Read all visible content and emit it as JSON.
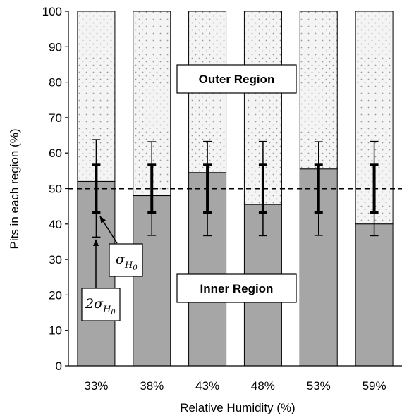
{
  "chart_data": {
    "type": "bar",
    "stacked": true,
    "categories": [
      "33%",
      "38%",
      "43%",
      "48%",
      "53%",
      "59%"
    ],
    "series": [
      {
        "name": "Inner Region",
        "values": [
          52,
          48,
          54.5,
          45.5,
          55.5,
          40
        ]
      },
      {
        "name": "Outer Region",
        "values": [
          48,
          52,
          45.5,
          54.5,
          44.5,
          60
        ]
      }
    ],
    "error_bars": {
      "center": 50,
      "sigma": {
        "low": 43.2,
        "high": 56.8
      },
      "two_sigma": [
        {
          "low": 36.3,
          "high": 63.8
        },
        {
          "low": 36.8,
          "high": 63.2
        },
        {
          "low": 36.7,
          "high": 63.3
        },
        {
          "low": 36.7,
          "high": 63.3
        },
        {
          "low": 36.8,
          "high": 63.2
        },
        {
          "low": 36.7,
          "high": 63.3
        }
      ]
    },
    "reference_line": {
      "y": 50,
      "style": "dashed"
    },
    "xlabel": "Relative Humidity (%)",
    "ylabel": "Pits in each region (%)",
    "ylim": [
      0,
      100
    ],
    "yticks": [
      0,
      10,
      20,
      30,
      40,
      50,
      60,
      70,
      80,
      90,
      100
    ],
    "annotations": {
      "outer_label": "Outer Region",
      "inner_label": "Inner Region",
      "sigma_symbol": "σ",
      "sigma_subscript": "H",
      "sigma_subsubscript": "0",
      "two_sigma_prefix": "2σ"
    },
    "colors": {
      "inner": "#a6a6a6",
      "outer": "#f4f4f4",
      "outer_dots": "#9a9a9a",
      "edge": "#000000"
    },
    "grid": false,
    "legend": "none"
  }
}
